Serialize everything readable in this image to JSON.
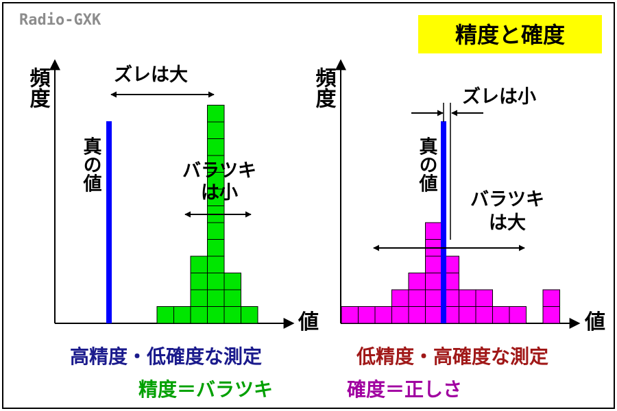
{
  "brand": "Radio-GXK",
  "title": "精度と確度",
  "left_panel": {
    "y_axis_label": "頻度",
    "x_axis_label": "値",
    "true_value_label": "真の値",
    "bias_label": "ズレは大",
    "spread_label_line1": "バラツキ",
    "spread_label_line2": "は小",
    "histogram_heights": [
      1,
      1,
      4,
      13,
      3,
      1
    ],
    "bar_color": "#00e600",
    "caption": "高精度・低確度な測定",
    "caption_color": "#1a1a8c",
    "definition": "精度＝バラツキ",
    "definition_color": "#00a000"
  },
  "right_panel": {
    "y_axis_label": "頻度",
    "x_axis_label": "値",
    "true_value_label": "真の値",
    "bias_label": "ズレは小",
    "spread_label_line1": "バラツキ",
    "spread_label_line2": "は大",
    "histogram_heights": [
      1,
      1,
      1,
      2,
      3,
      6,
      4,
      2,
      2,
      1,
      1,
      0,
      2
    ],
    "bar_color": "#ff00ff",
    "caption": "低精度・高確度な測定",
    "caption_color": "#a01818",
    "definition": "確度＝正しさ",
    "definition_color": "#a000a0"
  },
  "colors": {
    "true_value_line": "#0000ff",
    "title_background": "#ffff00"
  }
}
